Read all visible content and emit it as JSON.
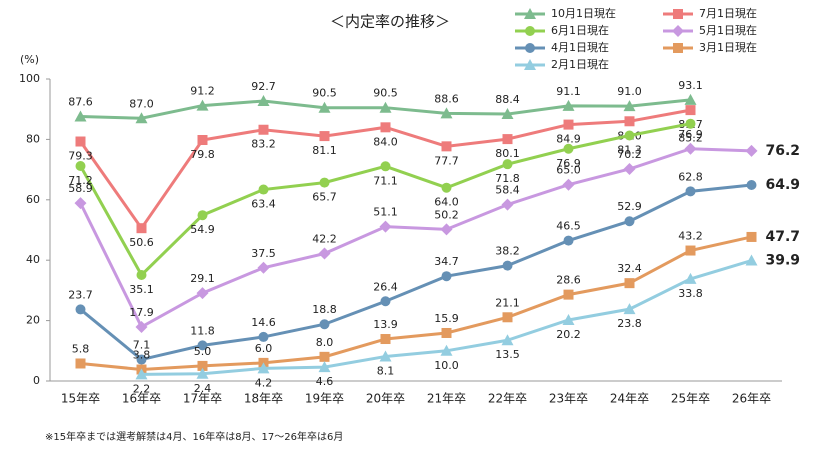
{
  "chart_data": {
    "type": "line",
    "title": "＜内定率の推移＞",
    "y_unit": "(%)",
    "footnote": "※15年卒までは選考解禁は4月、16年卒は8月、17～26年卒は6月",
    "categories": [
      "15年卒",
      "16年卒",
      "17年卒",
      "18年卒",
      "19年卒",
      "20年卒",
      "21年卒",
      "22年卒",
      "23年卒",
      "24年卒",
      "25年卒",
      "26年卒"
    ],
    "ylim": [
      0,
      100
    ],
    "yticks": [
      0,
      20,
      40,
      60,
      80,
      100
    ],
    "grid": false,
    "series": [
      {
        "name": "10月1日現在",
        "color": "#7dbb8e",
        "marker": "triangle",
        "label_pos": "above",
        "values": [
          87.6,
          87.0,
          91.2,
          92.7,
          90.5,
          90.5,
          88.6,
          88.4,
          91.1,
          91.0,
          93.1,
          null
        ],
        "value_labels": [
          "87.6",
          "87.0",
          "91.2",
          "92.7",
          "90.5",
          "90.5",
          "88.6",
          "88.4",
          "91.1",
          "91.0",
          "93.1",
          null
        ]
      },
      {
        "name": "7月1日現在",
        "color": "#ee7b7b",
        "marker": "square",
        "label_pos": "below",
        "values": [
          79.3,
          50.6,
          79.8,
          83.2,
          81.1,
          84.0,
          77.7,
          80.1,
          84.9,
          86.0,
          89.7,
          null
        ],
        "value_labels": [
          "79.3",
          "50.6",
          "79.8",
          "83.2",
          "81.1",
          "84.0",
          "77.7",
          "80.1",
          "84.9",
          "86.0",
          "89.7",
          null
        ]
      },
      {
        "name": "6月1日現在",
        "color": "#92d050",
        "marker": "circle",
        "label_pos": "below",
        "values": [
          71.2,
          35.1,
          54.9,
          63.4,
          65.7,
          71.1,
          64.0,
          71.8,
          76.9,
          81.3,
          85.2,
          null
        ],
        "value_labels": [
          "71.2",
          "35.1",
          "54.9",
          "63.4",
          "65.7",
          "71.1",
          "64.0",
          "71.8",
          "76.9",
          "81.3",
          "85.2",
          null
        ]
      },
      {
        "name": "5月1日現在",
        "color": "#c898e0",
        "marker": "diamond",
        "label_pos": "above",
        "values": [
          58.9,
          17.9,
          29.1,
          37.5,
          42.2,
          51.1,
          50.2,
          58.4,
          65.0,
          70.2,
          76.9,
          76.2
        ],
        "value_labels": [
          "58.9",
          "17.9",
          "29.1",
          "37.5",
          "42.2",
          "51.1",
          "50.2",
          "58.4",
          "65.0",
          "70.2",
          "76.9",
          "76.2"
        ]
      },
      {
        "name": "4月1日現在",
        "color": "#6590b5",
        "marker": "circle",
        "label_pos": "above",
        "values": [
          23.7,
          7.1,
          11.8,
          14.6,
          18.8,
          26.4,
          34.7,
          38.2,
          46.5,
          52.9,
          62.8,
          64.9
        ],
        "value_labels": [
          "23.7",
          "7.1",
          "11.8",
          "14.6",
          "18.8",
          "26.4",
          "34.7",
          "38.2",
          "46.5",
          "52.9",
          "62.8",
          "64.9"
        ]
      },
      {
        "name": "3月1日現在",
        "color": "#e39a5e",
        "marker": "square",
        "label_pos": "above",
        "values": [
          5.8,
          3.8,
          5.0,
          6.0,
          8.0,
          13.9,
          15.9,
          21.1,
          28.6,
          32.4,
          43.2,
          47.7
        ],
        "value_labels": [
          "5.8",
          "3.8",
          "5.0",
          "6.0",
          "8.0",
          "13.9",
          "15.9",
          "21.1",
          "28.6",
          "32.4",
          "43.2",
          "47.7"
        ]
      },
      {
        "name": "2月1日現在",
        "color": "#93cde0",
        "marker": "triangle",
        "label_pos": "below",
        "values": [
          null,
          2.2,
          2.4,
          4.2,
          4.6,
          8.1,
          10.0,
          13.5,
          20.2,
          23.8,
          33.8,
          39.9
        ],
        "value_labels": [
          null,
          "2.2",
          "2.4",
          "4.2",
          "4.6",
          "8.1",
          "10.0",
          "13.5",
          "20.2",
          "23.8",
          "33.8",
          "39.9"
        ]
      }
    ]
  }
}
